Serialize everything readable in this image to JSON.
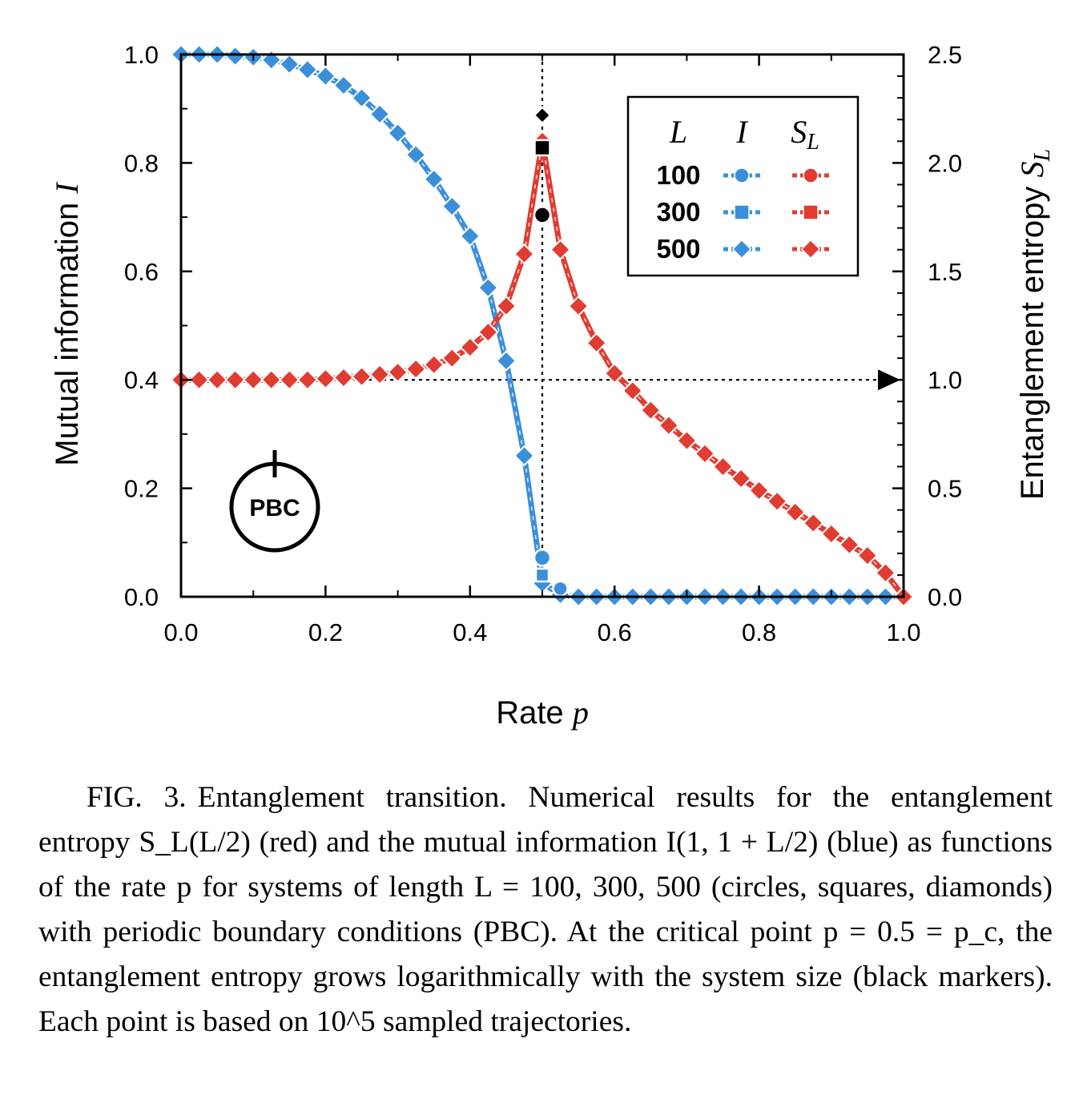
{
  "chart_data": {
    "type": "line",
    "xlabel": "Rate",
    "xlabel_var": "p",
    "ylabel_left": "Mutual information",
    "ylabel_left_var": "I",
    "ylabel_right": "Entanglement entropy",
    "ylabel_right_var": "S",
    "ylabel_right_sub": "L",
    "xlim": [
      0,
      1
    ],
    "ylim_left": [
      0,
      1.0
    ],
    "ylim_right": [
      0,
      2.5
    ],
    "x_ticks": [
      "0.0",
      "0.2",
      "0.4",
      "0.6",
      "0.8",
      "1.0"
    ],
    "y_left_ticks": [
      "0.0",
      "0.2",
      "0.4",
      "0.6",
      "0.8",
      "1.0"
    ],
    "y_right_ticks": [
      "0.0",
      "0.5",
      "1.0",
      "1.5",
      "2.0",
      "2.5"
    ],
    "grid": false,
    "legend": {
      "placement": "top-right",
      "col_L": "L",
      "col_I": "I",
      "col_S": "S",
      "col_S_sub": "L",
      "rows": [
        {
          "label": "100",
          "marker": "circle"
        },
        {
          "label": "300",
          "marker": "square"
        },
        {
          "label": "500",
          "marker": "diamond"
        }
      ]
    },
    "colors": {
      "mutual_information": "#3b8fd9",
      "entropy": "#e03c31",
      "critical_markers": "#000000"
    },
    "x": [
      0,
      0.025,
      0.05,
      0.075,
      0.1,
      0.125,
      0.15,
      0.175,
      0.2,
      0.225,
      0.25,
      0.275,
      0.3,
      0.325,
      0.35,
      0.375,
      0.4,
      0.425,
      0.45,
      0.475,
      0.5,
      0.525,
      0.55,
      0.575,
      0.6,
      0.625,
      0.65,
      0.675,
      0.7,
      0.725,
      0.75,
      0.775,
      0.8,
      0.825,
      0.85,
      0.875,
      0.9,
      0.925,
      0.95,
      0.975,
      1.0
    ],
    "series": [
      {
        "name": "I",
        "axis": "left",
        "values": [
          1.0,
          1.0,
          1.0,
          0.997,
          0.995,
          0.99,
          0.982,
          0.972,
          0.96,
          0.943,
          0.92,
          0.89,
          0.855,
          0.815,
          0.77,
          0.72,
          0.665,
          0.57,
          0.435,
          0.26,
          0.025,
          0.004,
          0.0,
          0.0,
          0.0,
          0.0,
          0.0,
          0.0,
          0.0,
          0.0,
          0.0,
          0.0,
          0.0,
          0.0,
          0.0,
          0.0,
          0.0,
          0.0,
          0.0,
          0.0,
          0.0
        ]
      },
      {
        "name": "S_L",
        "axis": "right",
        "values": [
          1.0,
          1.0,
          1.0,
          1.0,
          1.0,
          1.0,
          1.0,
          1.0,
          1.005,
          1.01,
          1.015,
          1.025,
          1.035,
          1.05,
          1.07,
          1.1,
          1.15,
          1.22,
          1.34,
          1.58,
          2.1,
          1.6,
          1.34,
          1.17,
          1.03,
          0.95,
          0.86,
          0.79,
          0.72,
          0.66,
          0.6,
          0.545,
          0.49,
          0.44,
          0.39,
          0.34,
          0.29,
          0.24,
          0.19,
          0.11,
          0.0
        ]
      }
    ],
    "critical_points": [
      {
        "L": "100",
        "marker": "circle",
        "axis": "right",
        "x": 0.5,
        "y": 1.76
      },
      {
        "L": "300",
        "marker": "square",
        "axis": "right",
        "x": 0.5,
        "y": 2.07
      },
      {
        "L": "500",
        "marker": "diamond",
        "axis": "right",
        "x": 0.5,
        "y": 2.22
      }
    ],
    "guide_lines": {
      "vertical_x": 0.5,
      "horizontal_right_y": 1.0
    },
    "inset_label": "PBC"
  },
  "caption": {
    "label": "FIG. 3.",
    "text": "Entanglement transition. Numerical results for the entanglement entropy S_L(L/2) (red) and the mutual information I(1, 1 + L/2) (blue) as functions of the rate p for systems of length L = 100, 300, 500 (circles, squares, diamonds) with periodic boundary conditions (PBC). At the critical point p = 0.5 = p_c, the entanglement entropy grows logarithmically with the system size (black markers). Each point is based on 10^5 sampled trajectories."
  }
}
